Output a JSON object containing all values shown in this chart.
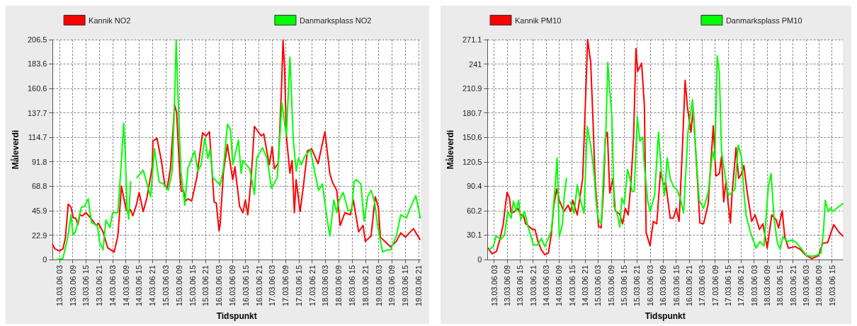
{
  "chart_data": [
    {
      "type": "line",
      "xlabel": "Tidspunkt",
      "ylabel": "Måleverdi",
      "legend": "top",
      "grid": true,
      "xlim": [
        "--03-13T00:00",
        "--03-19T22:00"
      ],
      "xticks": [
        {
          "value": "--03-13T03:00",
          "label": "13.03.06 03"
        },
        {
          "value": "--03-13T09:00",
          "label": "13.03.06 09"
        },
        {
          "value": "--03-13T15:00",
          "label": "13.03.06 15"
        },
        {
          "value": "--03-13T21:00",
          "label": "13.03.06 21"
        },
        {
          "value": "--03-14T03:00",
          "label": "14.03.06 03"
        },
        {
          "value": "--03-14T09:00",
          "label": "14.03.06 09"
        },
        {
          "value": "--03-14T15:00",
          "label": "14.03.06 15"
        },
        {
          "value": "--03-14T21:00",
          "label": "14.03.06 21"
        },
        {
          "value": "--03-15T03:00",
          "label": "15.03.06 03"
        },
        {
          "value": "--03-15T09:00",
          "label": "15.03.06 09"
        },
        {
          "value": "--03-15T15:00",
          "label": "15.03.06 15"
        },
        {
          "value": "--03-15T21:00",
          "label": "15.03.06 21"
        },
        {
          "value": "--03-16T03:00",
          "label": "16.03.06 03"
        },
        {
          "value": "--03-16T09:00",
          "label": "16.03.06 09"
        },
        {
          "value": "--03-16T15:00",
          "label": "16.03.06 15"
        },
        {
          "value": "--03-16T21:00",
          "label": "16.03.06 21"
        },
        {
          "value": "--03-17T03:00",
          "label": "17.03.06 03"
        },
        {
          "value": "--03-17T09:00",
          "label": "17.03.06 09"
        },
        {
          "value": "--03-17T15:00",
          "label": "17.03.06 15"
        },
        {
          "value": "--03-17T21:00",
          "label": "17.03.06 21"
        },
        {
          "value": "--03-18T03:00",
          "label": "18.03.06 03"
        },
        {
          "value": "--03-18T09:00",
          "label": "18.03.06 09"
        },
        {
          "value": "--03-18T15:00",
          "label": "18.03.06 15"
        },
        {
          "value": "--03-18T21:00",
          "label": "18.03.06 21"
        },
        {
          "value": "--03-19T03:00",
          "label": "19.03.06 03"
        },
        {
          "value": "--03-19T09:00",
          "label": "19.03.06 09"
        },
        {
          "value": "--03-19T15:00",
          "label": "19.03.06 15"
        },
        {
          "value": "--03-19T21:00",
          "label": "19.03.06 21"
        }
      ],
      "ylim": [
        0,
        206.5
      ],
      "yticks": [
        0,
        22.9,
        45.9,
        68.8,
        91.8,
        114.7,
        137.7,
        160.6,
        183.6,
        206.5
      ],
      "series": [
        {
          "name": "Kannik NO2",
          "color": "#ff0000",
          "x": [
            "--03-13T00:00",
            "--03-13T01:00",
            "--03-13T03:00",
            "--03-13T04:36",
            "--03-13T05:42",
            "--03-13T07:00",
            "--03-13T08:18",
            "--03-13T09:18",
            "--03-13T10:18",
            "--03-13T11:24",
            "--03-13T12:12",
            "--03-13T13:24",
            "--03-13T15:00",
            "--03-13T17:30",
            "--03-13T19:36",
            "--03-13T20:36",
            "--03-13T22:42",
            "--03-14T00:48",
            "--03-14T03:42",
            "--03-14T05:24",
            "--03-14T07:00",
            "--03-14T09:00",
            "--03-14T10:00",
            "--03-14T11:00",
            "--03-14T12:06",
            "--03-14T13:42",
            "--03-14T15:00",
            "--03-14T16:48",
            "--03-14T18:30",
            "--03-14T20:54",
            "--03-14T21:12",
            "--03-14T23:00",
            "--03-15T01:00",
            "--03-15T02:36",
            "--03-15T03:36",
            "--03-15T05:06",
            "--03-15T07:00",
            "--03-15T07:54",
            "--03-15T09:18",
            "--03-15T10:00",
            "--03-15T11:00",
            "--03-15T11:54",
            "--03-15T13:00",
            "--03-15T14:42",
            "--03-15T17:00",
            "--03-15T19:36",
            "--03-15T21:06",
            "--03-15T22:42",
            "--03-16T00:48",
            "--03-16T01:48",
            "--03-16T03:00",
            "--03-16T03:30",
            "--03-16T05:00",
            "--03-16T06:48",
            "--03-16T09:12",
            "--03-16T10:12",
            "--03-16T12:18",
            "--03-16T13:48",
            "--03-16T14:54",
            "--03-16T16:00",
            "--03-16T17:24",
            "--03-16T19:00",
            "--03-16T22:06",
            "--03-16T23:12",
            "--03-17T01:42",
            "--03-17T03:00",
            "--03-17T04:00",
            "--03-17T05:48",
            "--03-17T07:12",
            "--03-17T07:54",
            "--03-17T08:36",
            "--03-17T09:24",
            "--03-17T11:00",
            "--03-17T12:00",
            "--03-17T13:00",
            "--03-17T13:48",
            "--03-17T15:36",
            "--03-17T17:12",
            "--03-17T18:54",
            "--03-17T20:48",
            "--03-17T23:42",
            "--03-18T02:48",
            "--03-18T05:00",
            "--03-18T06:06",
            "--03-18T08:06",
            "--03-18T09:42",
            "--03-18T11:48",
            "--03-18T14:18",
            "--03-18T15:36",
            "--03-18T18:00",
            "--03-18T20:00",
            "--03-18T21:00",
            "--03-18T23:36",
            "--03-19T01:30",
            "--03-19T02:54",
            "--03-19T03:48",
            "--03-19T06:54",
            "--03-19T08:24",
            "--03-19T11:00",
            "--03-19T13:00",
            "--03-19T15:06",
            "--03-19T18:42",
            "--03-19T21:36"
          ],
          "values": [
            14,
            10,
            8,
            10,
            20,
            52,
            49,
            39,
            39,
            33,
            42,
            41,
            44,
            38,
            32,
            34,
            26,
            11,
            7,
            22,
            69,
            48,
            44,
            47,
            41,
            51,
            63,
            45,
            58,
            87,
            111,
            114,
            93,
            69,
            67,
            85,
            145,
            138,
            81,
            64,
            65,
            55,
            57,
            55,
            77,
            119,
            116,
            120,
            54,
            53,
            27,
            32,
            82,
            108,
            75,
            87,
            50,
            44,
            56,
            42,
            73,
            125,
            116,
            118,
            89,
            106,
            85,
            91,
            161,
            206,
            179,
            116,
            81,
            93,
            44,
            75,
            45,
            71,
            102,
            104,
            90,
            120,
            81,
            73,
            65,
            32,
            44,
            42,
            56,
            26,
            32,
            17,
            22,
            59,
            49,
            21,
            15,
            12,
            17,
            25,
            21,
            29,
            19
          ]
        },
        {
          "name": "Danmarksplass NO2",
          "color": "#00ff00",
          "x": [
            "--03-13T01:54",
            "--03-13T04:36",
            "--03-13T06:42",
            "--03-13T08:18",
            "--03-13T09:06",
            "--03-13T10:18",
            "--03-13T12:54",
            "--03-13T14:24",
            "--03-13T16:00",
            "--03-13T17:30",
            "--03-13T19:06",
            "--03-13T20:06",
            "--03-13T21:12",
            "--03-13T22:42",
            "--03-14T00:00",
            "--03-14T01:48",
            "--03-14T03:00",
            "--03-14T05:24",
            "--03-14T07:00",
            "--03-14T08:00",
            "--03-14T08:48",
            "--03-14T09:30",
            "--03-14T10:18",
            "--03-14T11:06",
            "--03-14T12:30",
            "--03-14T14:00",
            "--03-14T16:48",
            "--03-14T18:18",
            "--03-14T20:12",
            "--03-14T21:54",
            "--03-15T00:00",
            "--03-15T02:00",
            "--03-15T04:06",
            "--03-15T05:54",
            "--03-15T07:00",
            "--03-15T07:42",
            "--03-15T08:30",
            "--03-15T09:48",
            "--03-15T11:36",
            "--03-15T13:00",
            "--03-15T14:24",
            "--03-15T16:00",
            "--03-15T17:30",
            "--03-15T18:54",
            "--03-15T20:36",
            "--03-15T22:00",
            "--03-15T23:00",
            "--03-16T00:12",
            "--03-16T03:30",
            "--03-16T05:00",
            "--03-16T06:48",
            "--03-16T08:12",
            "--03-16T09:12",
            "--03-16T11:48",
            "--03-16T13:00",
            "--03-16T13:48",
            "--03-16T16:54",
            "--03-16T19:00",
            "--03-16T20:00",
            "--03-16T22:36",
            "--03-17T00:42",
            "--03-17T02:42",
            "--03-17T05:18",
            "--03-17T07:24",
            "--03-17T09:24",
            "--03-17T11:00",
            "--03-17T12:30",
            "--03-17T13:48",
            "--03-17T14:48",
            "--03-17T16:12",
            "--03-17T17:42",
            "--03-17T20:18",
            "--03-17T22:18",
            "--03-17T23:54",
            "--03-18T01:42",
            "--03-18T03:30",
            "--03-18T05:00",
            "--03-18T06:48",
            "--03-18T08:06",
            "--03-18T08:54",
            "--03-18T11:00",
            "--03-18T13:18",
            "--03-18T14:54",
            "--03-18T15:54",
            "--03-18T16:54",
            "--03-18T19:00",
            "--03-18T20:30",
            "--03-18T22:06",
            "--03-18T23:36",
            "--03-19T01:12",
            "--03-19T02:42",
            "--03-19T04:48",
            "--03-19T06:54",
            "--03-19T08:24",
            "--03-19T11:00",
            "--03-19T13:00",
            "--03-19T15:36",
            "--03-19T17:12",
            "--03-19T19:48",
            "--03-19T21:48"
          ],
          "values": [
            0,
            1,
            20,
            42,
            23,
            26,
            49,
            50,
            57,
            35,
            33,
            32,
            16,
            9,
            37,
            30,
            44,
            44,
            93,
            128,
            97,
            48,
            38,
            73,
            null,
            77,
            84,
            73,
            59,
            104,
            73,
            71,
            65,
            83,
            151,
            206,
            155,
            83,
            51,
            86,
            93,
            102,
            83,
            89,
            114,
            95,
            103,
            77,
            70,
            85,
            127,
            122,
            89,
            112,
            81,
            93,
            85,
            61,
            95,
            105,
            95,
            67,
            77,
            147,
            116,
            190,
            114,
            83,
            95,
            89,
            97,
            103,
            81,
            65,
            71,
            42,
            22,
            56,
            44,
            54,
            63,
            46,
            46,
            73,
            75,
            71,
            36,
            59,
            65,
            54,
            30,
            7,
            9,
            9,
            22,
            42,
            39,
            48,
            60,
            39
          ]
        }
      ]
    },
    {
      "type": "line",
      "xlabel": "Tidspunkt",
      "ylabel": "Måleverdi",
      "legend": "top",
      "grid": true,
      "xlim": [
        "--03-13T00:00",
        "--03-19T20:00"
      ],
      "xticks": [
        {
          "value": "--03-13T03:00",
          "label": "13.03.06 03"
        },
        {
          "value": "--03-13T09:00",
          "label": "13.03.06 09"
        },
        {
          "value": "--03-13T15:00",
          "label": "13.03.06 15"
        },
        {
          "value": "--03-13T21:00",
          "label": "13.03.06 21"
        },
        {
          "value": "--03-14T03:00",
          "label": "14.03.06 03"
        },
        {
          "value": "--03-14T09:00",
          "label": "14.03.06 09"
        },
        {
          "value": "--03-14T15:00",
          "label": "14.03.06 15"
        },
        {
          "value": "--03-14T21:00",
          "label": "14.03.06 21"
        },
        {
          "value": "--03-15T03:00",
          "label": "15.03.06 03"
        },
        {
          "value": "--03-15T09:00",
          "label": "15.03.06 09"
        },
        {
          "value": "--03-15T15:00",
          "label": "15.03.06 15"
        },
        {
          "value": "--03-15T21:00",
          "label": "15.03.06 21"
        },
        {
          "value": "--03-16T03:00",
          "label": "16.03.06 03"
        },
        {
          "value": "--03-16T09:00",
          "label": "16.03.06 09"
        },
        {
          "value": "--03-16T15:00",
          "label": "16.03.06 15"
        },
        {
          "value": "--03-16T21:00",
          "label": "16.03.06 21"
        },
        {
          "value": "--03-17T03:00",
          "label": "17.03.06 03"
        },
        {
          "value": "--03-17T09:00",
          "label": "17.03.06 09"
        },
        {
          "value": "--03-17T15:00",
          "label": "17.03.06 15"
        },
        {
          "value": "--03-17T21:00",
          "label": "17.03.06 21"
        },
        {
          "value": "--03-18T03:00",
          "label": "18.03.06 03"
        },
        {
          "value": "--03-18T09:00",
          "label": "18.03.06 09"
        },
        {
          "value": "--03-18T15:00",
          "label": "18.03.06 15"
        },
        {
          "value": "--03-18T21:00",
          "label": "18.03.06 21"
        },
        {
          "value": "--03-19T03:00",
          "label": "19.03.06 03"
        },
        {
          "value": "--03-19T09:00",
          "label": "19.03.06 09"
        },
        {
          "value": "--03-19T15:00",
          "label": "19.03.06 15"
        }
      ],
      "ylim": [
        0,
        271.1
      ],
      "yticks": [
        0,
        30.1,
        60.2,
        90.4,
        120.5,
        150.6,
        180.7,
        210.9,
        241,
        271.1
      ],
      "series": [
        {
          "name": "Kannik PM10",
          "color": "#ff0000",
          "x": [
            "--03-13T00:12",
            "--03-13T02:06",
            "--03-13T04:06",
            "--03-13T05:42",
            "--03-13T07:12",
            "--03-13T08:18",
            "--03-13T09:00",
            "--03-13T10:06",
            "--03-13T10:54",
            "--03-13T12:24",
            "--03-13T14:00",
            "--03-13T15:18",
            "--03-13T16:30",
            "--03-13T17:36",
            "--03-13T19:06",
            "--03-13T20:42",
            "--03-13T21:54",
            "--03-13T23:18",
            "--03-14T00:48",
            "--03-14T02:24",
            "--03-14T04:06",
            "--03-14T05:30",
            "--03-14T06:30",
            "--03-14T07:54",
            "--03-14T09:06",
            "--03-14T11:12",
            "--03-14T13:12",
            "--03-14T14:18",
            "--03-14T15:18",
            "--03-14T17:24",
            "--03-14T18:36",
            "--03-14T19:54",
            "--03-14T21:18",
            "--03-14T22:12",
            "--03-14T23:36",
            "--03-15T00:36",
            "--03-15T01:36",
            "--03-15T03:12",
            "--03-15T04:24",
            "--03-15T05:36",
            "--03-15T06:18",
            "--03-15T07:18",
            "--03-15T08:24",
            "--03-15T09:54",
            "--03-15T10:54",
            "--03-15T13:00",
            "--03-15T14:18",
            "--03-15T15:36",
            "--03-15T16:54",
            "--03-15T18:12",
            "--03-15T19:24",
            "--03-15T20:30",
            "--03-15T21:18",
            "--03-15T23:06",
            "--03-16T00:24",
            "--03-16T01:12",
            "--03-16T03:00",
            "--03-16T04:30",
            "--03-16T06:06",
            "--03-16T07:48",
            "--03-16T09:12",
            "--03-16T10:12",
            "--03-16T12:18",
            "--03-16T13:48",
            "--03-16T15:06",
            "--03-16T16:24",
            "--03-16T17:54",
            "--03-16T19:12",
            "--03-16T20:12",
            "--03-16T21:54",
            "--03-16T22:54",
            "--03-17T00:36",
            "--03-17T02:00",
            "--03-17T03:42",
            "--03-17T05:48",
            "--03-17T08:12",
            "--03-17T09:24",
            "--03-17T11:00",
            "--03-17T12:00",
            "--03-17T13:00",
            "--03-17T14:06",
            "--03-17T15:06",
            "--03-17T16:06",
            "--03-17T16:48",
            "--03-17T18:42",
            "--03-17T19:54",
            "--03-17T21:18",
            "--03-17T22:18",
            "--03-17T23:48",
            "--03-18T01:54",
            "--03-18T03:30",
            "--03-18T05:30",
            "--03-18T07:06",
            "--03-18T09:06",
            "--03-18T11:12",
            "--03-18T13:12",
            "--03-18T14:18",
            "--03-18T16:00",
            "--03-18T17:12",
            "--03-18T18:54",
            "--03-18T22:00",
            "--03-19T00:36",
            "--03-19T02:36",
            "--03-19T05:42",
            "--03-19T08:48",
            "--03-19T10:42",
            "--03-19T13:00",
            "--03-19T15:48",
            "--03-19T18:06",
            "--03-19T20:00"
          ],
          "values": [
            14,
            7,
            10,
            25,
            43,
            68,
            83,
            76,
            57,
            59,
            63,
            55,
            55,
            44,
            41,
            37,
            37,
            22,
            12,
            6,
            8,
            33,
            65,
            87,
            73,
            59,
            67,
            59,
            73,
            55,
            76,
            100,
            203,
            271,
            243,
            176,
            100,
            41,
            39,
            90,
            149,
            157,
            82,
            100,
            60,
            56,
            44,
            63,
            55,
            95,
            151,
            260,
            232,
            242,
            189,
            33,
            17,
            47,
            44,
            108,
            92,
            95,
            51,
            51,
            63,
            47,
            135,
            221,
            189,
            157,
            186,
            111,
            45,
            44,
            68,
            165,
            103,
            106,
            127,
            71,
            98,
            68,
            45,
            79,
            138,
            100,
            106,
            116,
            84,
            47,
            55,
            37,
            44,
            14,
            55,
            49,
            39,
            60,
            28,
            14,
            16,
            12,
            6,
            1,
            5,
            20,
            21,
            43,
            34,
            29
          ]
        },
        {
          "name": "Danmarksplass PM10",
          "color": "#00ff00",
          "x": [
            "--03-13T00:30",
            "--03-13T02:36",
            "--03-13T03:54",
            "--03-13T06:12",
            "--03-13T07:48",
            "--03-13T09:18",
            "--03-13T10:54",
            "--03-13T11:54",
            "--03-13T13:12",
            "--03-13T14:18",
            "--03-13T15:18",
            "--03-13T17:06",
            "--03-13T18:36",
            "--03-13T21:12",
            "--03-13T23:18",
            "--03-14T00:48",
            "--03-14T02:24",
            "--03-14T03:54",
            "--03-14T05:30",
            "--03-14T07:00",
            "--03-14T08:06",
            "--03-14T09:06",
            "--03-14T10:36",
            "--03-14T11:24",
            "--03-14T12:24",
            "--03-14T13:18",
            "--03-14T14:18",
            "--03-14T15:54",
            "--03-14T17:24",
            "--03-14T18:54",
            "--03-14T20:30",
            "--03-14T22:00",
            "--03-14T23:36",
            "--03-15T01:06",
            "--03-15T02:12",
            "--03-15T03:12",
            "--03-15T04:30",
            "--03-15T05:48",
            "--03-15T06:36",
            "--03-15T07:30",
            "--03-15T08:24",
            "--03-15T09:24",
            "--03-15T10:24",
            "--03-15T12:00",
            "--03-15T13:00",
            "--03-15T14:00",
            "--03-15T15:06",
            "--03-15T16:36",
            "--03-15T17:42",
            "--03-15T18:42",
            "--03-15T19:42",
            "--03-15T21:06",
            "--03-15T22:18",
            "--03-15T23:36",
            "--03-16T00:24",
            "--03-16T02:00",
            "--03-16T03:00",
            "--03-16T05:06",
            "--03-16T06:54",
            "--03-16T08:12",
            "--03-16T09:42",
            "--03-16T10:54",
            "--03-16T12:18",
            "--03-16T13:48",
            "--03-16T15:24",
            "--03-16T16:54",
            "--03-16T18:30",
            "--03-16T20:30",
            "--03-16T22:36",
            "--03-17T00:06",
            "--03-17T01:42",
            "--03-17T03:42",
            "--03-17T05:48",
            "--03-17T07:54",
            "--03-17T08:54",
            "--03-17T10:00",
            "--03-17T11:00",
            "--03-17T12:00",
            "--03-17T13:30",
            "--03-17T15:06",
            "--03-17T16:36",
            "--03-17T18:12",
            "--03-17T19:42",
            "--03-17T21:18",
            "--03-17T22:18",
            "--03-17T23:18",
            "--03-18T01:24",
            "--03-18T04:00",
            "--03-18T05:42",
            "--03-18T07:36",
            "--03-18T09:36",
            "--03-18T10:54",
            "--03-18T12:12",
            "--03-18T13:48",
            "--03-18T15:06",
            "--03-18T16:18",
            "--03-18T18:24",
            "--03-18T20:30",
            "--03-18T22:30",
            "--03-19T00:36",
            "--03-19T03:12",
            "--03-19T05:42",
            "--03-19T07:48",
            "--03-19T09:54",
            "--03-19T11:06",
            "--03-19T11:54",
            "--03-19T13:12",
            "--03-19T14:30",
            "--03-19T15:00",
            "--03-19T17:06",
            "--03-19T20:00"
          ],
          "values": [
            12,
            16,
            29,
            25,
            30,
            59,
            51,
            72,
            60,
            73,
            49,
            59,
            41,
            18,
            18,
            26,
            16,
            25,
            36,
            84,
            125,
            28,
            44,
            79,
            100,
            null,
            71,
            57,
            92,
            73,
            57,
            164,
            141,
            108,
            68,
            49,
            44,
            122,
            157,
            243,
            208,
            176,
            65,
            55,
            40,
            76,
            68,
            111,
            100,
            84,
            84,
            176,
            146,
            151,
            114,
            71,
            59,
            79,
            157,
            108,
            79,
            125,
            100,
            90,
            86,
            76,
            57,
            157,
            197,
            135,
            73,
            63,
            82,
            133,
            122,
            251,
            230,
            133,
            106,
            79,
            82,
            87,
            141,
            125,
            84,
            55,
            33,
            14,
            22,
            17,
            90,
            106,
            52,
            20,
            13,
            28,
            22,
            24,
            21,
            14,
            5,
            4,
            5,
            8,
            36,
            73,
            59,
            64,
            59,
            63,
            69
          ]
        }
      ]
    }
  ]
}
